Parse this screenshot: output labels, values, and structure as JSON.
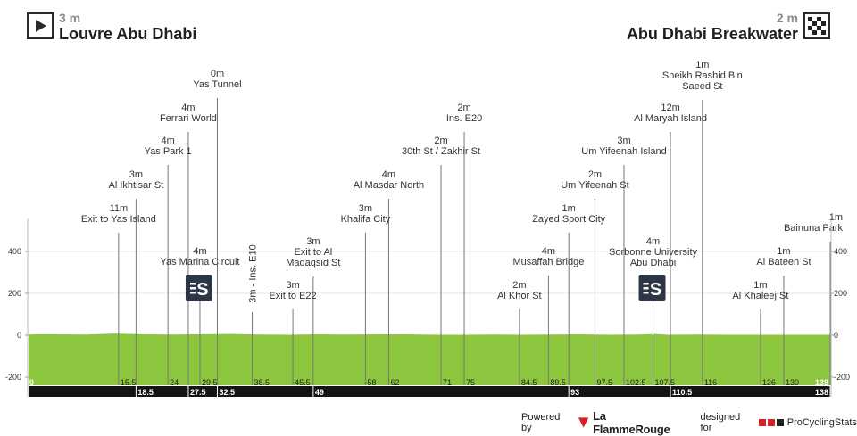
{
  "header": {
    "start": {
      "altitude": "3 m",
      "name": "Louvre Abu Dhabi",
      "icon": "play-icon"
    },
    "finish": {
      "altitude": "2 m",
      "name": "Abu Dhabi Breakwater",
      "icon": "checkered-flag-icon"
    }
  },
  "footer": {
    "powered_by": "Powered by",
    "brand": "La FlammeRouge",
    "designed_for": "designed for",
    "pcs": "ProCyclingStats"
  },
  "colors": {
    "profile_fill": "#8cc63f",
    "axis_bar": "#141414",
    "sponsor_badge": "#2d3646"
  },
  "chart_data": {
    "type": "area",
    "xlabel": "",
    "ylabel": "",
    "xlim": [
      0,
      138
    ],
    "ylim": [
      -200,
      400
    ],
    "y_ticks": [
      "400",
      "200",
      "0",
      "-200"
    ],
    "y_tick_values": [
      400,
      200,
      0,
      -200
    ],
    "series": [
      {
        "values_x": [
          0,
          2,
          5,
          10,
          15,
          20,
          25,
          30,
          35,
          40,
          45,
          50,
          55,
          60,
          65,
          70,
          75,
          80,
          85,
          90,
          95,
          100,
          105,
          108,
          110,
          115,
          120,
          125,
          130,
          135,
          138
        ],
        "values_y": [
          3,
          5,
          4,
          3,
          8,
          4,
          3,
          5,
          6,
          3,
          2,
          4,
          3,
          4,
          4,
          2,
          2,
          3,
          2,
          3,
          4,
          2,
          3,
          6,
          2,
          3,
          2,
          2,
          2,
          2,
          2
        ]
      }
    ],
    "km_labels_row1": [
      {
        "km": 0,
        "label": "0"
      },
      {
        "km": 15.5,
        "label": "15.5"
      },
      {
        "km": 24,
        "label": "24"
      },
      {
        "km": 29.5,
        "label": "29.5"
      },
      {
        "km": 38.5,
        "label": "38.5"
      },
      {
        "km": 45.5,
        "label": "45.5"
      },
      {
        "km": 58,
        "label": "58"
      },
      {
        "km": 62,
        "label": "62"
      },
      {
        "km": 71,
        "label": "71"
      },
      {
        "km": 75,
        "label": "75"
      },
      {
        "km": 84.5,
        "label": "84.5"
      },
      {
        "km": 89.5,
        "label": "89.5"
      },
      {
        "km": 97.5,
        "label": "97.5"
      },
      {
        "km": 102.5,
        "label": "102.5"
      },
      {
        "km": 107.5,
        "label": "107.5"
      },
      {
        "km": 116,
        "label": "116"
      },
      {
        "km": 126,
        "label": "126"
      },
      {
        "km": 130,
        "label": "130"
      },
      {
        "km": 138,
        "label": "138"
      }
    ],
    "km_labels_row2": [
      {
        "km": 18.5,
        "label": "18.5"
      },
      {
        "km": 27.5,
        "label": "27.5"
      },
      {
        "km": 32.5,
        "label": "32.5"
      },
      {
        "km": 49,
        "label": "49"
      },
      {
        "km": 93,
        "label": "93"
      },
      {
        "km": 110.5,
        "label": "110.5"
      },
      {
        "km": 138,
        "label": "138"
      }
    ],
    "waypoints": [
      {
        "km": 15.5,
        "alt": "11m",
        "name": "Exit to Yas Island",
        "label_y": 243
      },
      {
        "km": 18.5,
        "alt": "3m",
        "name": "Al Ikhtisar St",
        "label_y": 205
      },
      {
        "km": 24,
        "alt": "4m",
        "name": "Yas Park 1",
        "label_y": 167
      },
      {
        "km": 27.5,
        "alt": "4m",
        "name": "Ferrari World",
        "label_y": 130
      },
      {
        "km": 29.5,
        "alt": "4m",
        "name": "Yas Marina Circuit",
        "label_y": 291
      },
      {
        "km": 32.5,
        "alt": "0m",
        "name": "Yas Tunnel",
        "label_y": 92
      },
      {
        "km": 38.5,
        "alt": "",
        "name": "3m - Ins. E10",
        "label_y": 0,
        "vertical": true
      },
      {
        "km": 45.5,
        "alt": "3m",
        "name": "Exit to E22",
        "label_y": 329
      },
      {
        "km": 49,
        "alt": "3m",
        "name": "Exit to Al Maqaqsid St",
        "label_y": 280
      },
      {
        "km": 58,
        "alt": "3m",
        "name": "Khalifa City",
        "label_y": 243
      },
      {
        "km": 62,
        "alt": "4m",
        "name": "Al Masdar North",
        "label_y": 205
      },
      {
        "km": 71,
        "alt": "2m",
        "name": "30th St / Zakhir St",
        "label_y": 167
      },
      {
        "km": 75,
        "alt": "2m",
        "name": "Ins. E20",
        "label_y": 130
      },
      {
        "km": 84.5,
        "alt": "2m",
        "name": "Al Khor St",
        "label_y": 329
      },
      {
        "km": 89.5,
        "alt": "4m",
        "name": "Musaffah Bridge",
        "label_y": 291
      },
      {
        "km": 93,
        "alt": "1m",
        "name": "Zayed Sport City",
        "label_y": 243
      },
      {
        "km": 97.5,
        "alt": "2m",
        "name": "Um Yifeenah St",
        "label_y": 205
      },
      {
        "km": 102.5,
        "alt": "3m",
        "name": "Um Yifeenah Island",
        "label_y": 167
      },
      {
        "km": 107.5,
        "alt": "4m",
        "name": "Sorbonne University Abu Dhabi",
        "label_y": 280
      },
      {
        "km": 110.5,
        "alt": "12m",
        "name": "Al Maryah Island",
        "label_y": 130
      },
      {
        "km": 116,
        "alt": "1m",
        "name": "Sheikh Rashid Bin Saeed St",
        "label_y": 82
      },
      {
        "km": 126,
        "alt": "1m",
        "name": "Al Khaleej St",
        "label_y": 329
      },
      {
        "km": 130,
        "alt": "1m",
        "name": "Al Bateen St",
        "label_y": 291
      },
      {
        "km": 138,
        "alt": "1m",
        "name": "Bainuna Park",
        "label_y": 253
      }
    ],
    "sprint_markers": [
      {
        "km": 29.5,
        "icon": "sprint-s-icon"
      },
      {
        "km": 107.5,
        "icon": "sprint-s-icon"
      }
    ]
  }
}
